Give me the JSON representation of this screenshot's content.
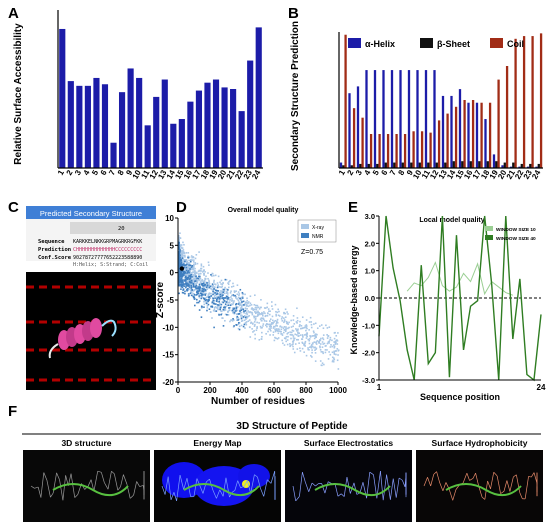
{
  "panel_letters": {
    "a": "A",
    "b": "B",
    "c": "C",
    "d": "D",
    "e": "E",
    "f": "F"
  },
  "chart_data": [
    {
      "panel": "A",
      "type": "bar",
      "ylabel": "Relative Surface Accessibility",
      "xlabel": "",
      "categories": [
        "1",
        "2",
        "3",
        "4",
        "5",
        "6",
        "7",
        "8",
        "9",
        "10",
        "11",
        "12",
        "13",
        "14",
        "15",
        "16",
        "17",
        "18",
        "19",
        "20",
        "21",
        "22",
        "23",
        "24"
      ],
      "values": [
        0.88,
        0.55,
        0.52,
        0.52,
        0.57,
        0.53,
        0.16,
        0.48,
        0.63,
        0.57,
        0.27,
        0.45,
        0.56,
        0.28,
        0.31,
        0.42,
        0.49,
        0.54,
        0.56,
        0.51,
        0.5,
        0.36,
        0.68,
        0.89
      ],
      "ylim": [
        0,
        1
      ],
      "color": "#1c1ca8"
    },
    {
      "panel": "B",
      "type": "bar",
      "ylabel": "Secondary Structure Prediction",
      "xlabel": "",
      "categories": [
        "1",
        "2",
        "3",
        "4",
        "5",
        "6",
        "7",
        "8",
        "9",
        "10",
        "11",
        "12",
        "13",
        "14",
        "15",
        "16",
        "17",
        "18",
        "19",
        "20",
        "21",
        "22",
        "23",
        "24"
      ],
      "ylim": [
        0,
        1
      ],
      "legend_position": "top",
      "series": [
        {
          "name": "α-Helix",
          "color": "#1c1ca8",
          "values": [
            0.04,
            0.55,
            0.6,
            0.72,
            0.72,
            0.72,
            0.72,
            0.72,
            0.72,
            0.72,
            0.72,
            0.72,
            0.53,
            0.53,
            0.58,
            0.48,
            0.48,
            0.36,
            0.1,
            0.02,
            0.01,
            0.01,
            0.01,
            0.01
          ]
        },
        {
          "name": "β-Sheet",
          "color": "#111111",
          "values": [
            0.02,
            0.02,
            0.03,
            0.03,
            0.03,
            0.04,
            0.04,
            0.04,
            0.04,
            0.04,
            0.04,
            0.04,
            0.04,
            0.05,
            0.05,
            0.05,
            0.05,
            0.05,
            0.05,
            0.04,
            0.04,
            0.03,
            0.03,
            0.03
          ]
        },
        {
          "name": "Coil",
          "color": "#a12c16",
          "values": [
            0.98,
            0.44,
            0.37,
            0.25,
            0.25,
            0.25,
            0.25,
            0.25,
            0.27,
            0.27,
            0.26,
            0.35,
            0.4,
            0.45,
            0.5,
            0.5,
            0.48,
            0.48,
            0.65,
            0.75,
            0.95,
            0.97,
            0.97,
            0.99
          ]
        }
      ]
    },
    {
      "panel": "D",
      "type": "scatter",
      "title": "Overall model quality",
      "xlabel": "Number of residues",
      "ylabel": "Z-score",
      "xlim": [
        0,
        1000
      ],
      "ylim": [
        -20,
        10
      ],
      "xticks": [
        0,
        200,
        400,
        600,
        800,
        1000
      ],
      "yticks": [
        -20,
        -15,
        -10,
        -5,
        0,
        5,
        10
      ],
      "series": [
        {
          "name": "X-ray",
          "color": "#a9c7e6"
        },
        {
          "name": "NMR",
          "color": "#3f7fc0"
        }
      ],
      "annotation": "Z=0.75",
      "model_point": {
        "x": 24,
        "y": 0.75,
        "color": "#000000"
      }
    },
    {
      "panel": "E",
      "type": "line",
      "title": "Local model quality",
      "xlabel": "Sequence position",
      "ylabel": "Knowledge-based energy",
      "xlim": [
        1,
        24
      ],
      "ylim": [
        -3,
        3
      ],
      "xticks": [
        1,
        24
      ],
      "yticks": [
        -3.0,
        -2.0,
        -1.0,
        0.0,
        1.0,
        2.0,
        3.0
      ],
      "legend_position": "top-right",
      "series": [
        {
          "name": "WINDOW SIZE 10",
          "color": "#9bcf94",
          "x": [
            5,
            6,
            7,
            8,
            9,
            10,
            11,
            12,
            13,
            14,
            15,
            16,
            17,
            18,
            19,
            20
          ],
          "values": [
            0.25,
            0.55,
            0.45,
            0.75,
            1.3,
            0.45,
            0.25,
            0.4,
            0.9,
            0.6,
            1.25,
            0.15,
            0.6,
            0.4,
            0.2,
            0.1
          ]
        },
        {
          "name": "WINDOW SIZE 40",
          "color": "#2f7d22",
          "x": [
            1,
            2,
            3,
            4,
            5,
            6,
            7,
            8,
            9,
            10,
            11,
            12,
            13,
            14,
            15,
            16,
            17,
            18,
            19,
            20,
            21,
            22,
            23,
            24
          ],
          "values": [
            -1.4,
            3.0,
            1.1,
            -0.1,
            -1.9,
            -3.0,
            1.2,
            -2.4,
            -2.0,
            3.0,
            -2.9,
            2.3,
            -1.9,
            -0.3,
            -0.1,
            3.0,
            0.5,
            -3.0,
            3.0,
            -1.5,
            0.7,
            -2.8,
            -3.0,
            -0.6
          ]
        }
      ]
    }
  ],
  "panel_c": {
    "header": "Predicted Secondary Structure",
    "position_number": "20",
    "rows": [
      {
        "label": "Sequence",
        "value": "KARKKELNKKGRPMAGRKRGFKK"
      },
      {
        "label": "Prediction",
        "value": "CHHHHHHHHHHHHHCCCCCCCCC"
      },
      {
        "label": "Conf.Score",
        "value": "90278727777652223588890"
      }
    ],
    "key": "H:Helix; S:Strand; C:Coil"
  },
  "panel_f": {
    "title": "3D Structure of Peptide",
    "images": [
      "3D structure",
      "Energy Map",
      "Surface Electrostatics",
      "Surface Hydrophobicity"
    ]
  }
}
